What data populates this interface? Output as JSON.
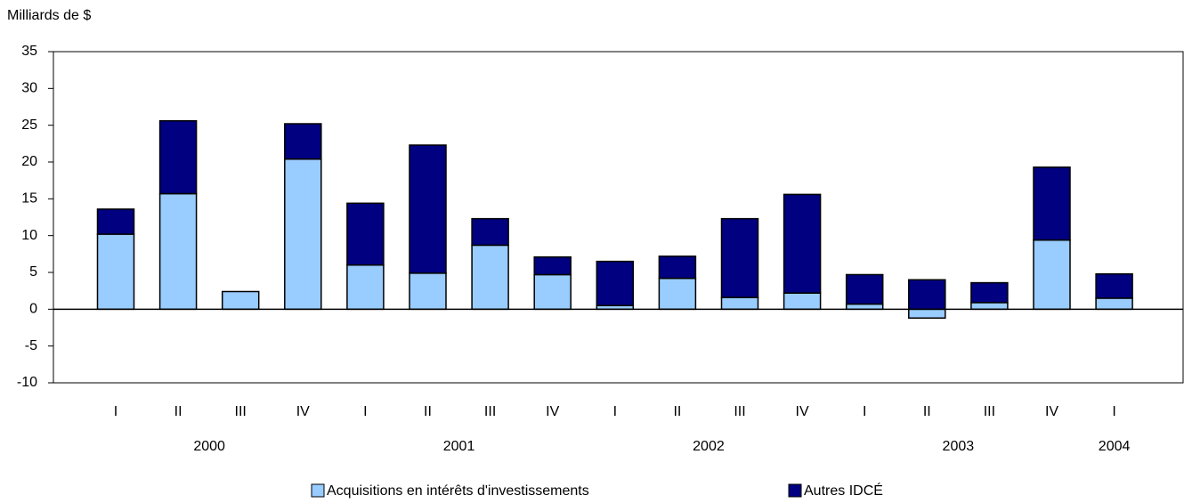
{
  "chart_data": {
    "type": "stacked-bar",
    "y_label": "Milliards de $",
    "categories": [
      "I",
      "II",
      "III",
      "IV",
      "I",
      "II",
      "III",
      "IV",
      "I",
      "II",
      "III",
      "IV",
      "I",
      "II",
      "III",
      "IV",
      "I"
    ],
    "groups": [
      {
        "name": "2000",
        "size": 4
      },
      {
        "name": "2001",
        "size": 4
      },
      {
        "name": "2002",
        "size": 4
      },
      {
        "name": "2003",
        "size": 4
      },
      {
        "name": "2004",
        "size": 1
      }
    ],
    "series": [
      {
        "name": "Acquisitions en intérêts d'investissements",
        "color": "#99ccff",
        "values": [
          10.2,
          15.7,
          2.4,
          20.4,
          6.0,
          4.9,
          8.7,
          4.7,
          0.5,
          4.2,
          1.6,
          2.2,
          0.7,
          -1.2,
          0.9,
          9.4,
          1.5
        ]
      },
      {
        "name": "Autres IDCÉ",
        "color": "#000080",
        "values": [
          3.4,
          9.9,
          0,
          4.8,
          8.4,
          17.4,
          3.6,
          2.4,
          6.0,
          3.0,
          10.7,
          13.4,
          4.0,
          4.0,
          2.7,
          9.9,
          3.3
        ]
      }
    ],
    "ylim": [
      -10,
      35
    ],
    "yticks": [
      -10,
      -5,
      0,
      5,
      10,
      15,
      20,
      25,
      30,
      35
    ]
  }
}
